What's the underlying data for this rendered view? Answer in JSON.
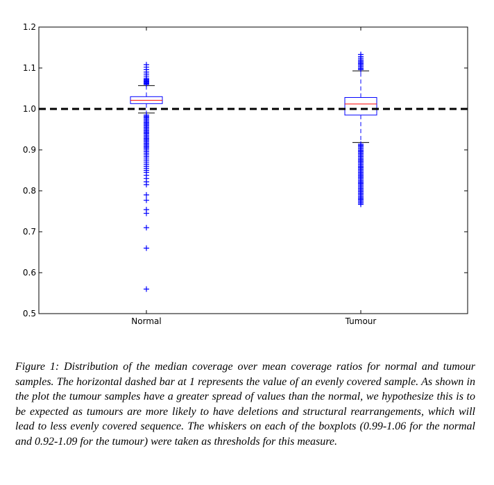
{
  "chart_data": {
    "type": "boxplot",
    "title": "",
    "xlabel": "",
    "ylabel": "",
    "ylim": [
      0.5,
      1.2
    ],
    "yticks": [
      "0.5",
      "0.6",
      "0.7",
      "0.8",
      "0.9",
      "1.0",
      "1.1",
      "1.2"
    ],
    "reference_line": {
      "y": 1.0,
      "style": "dashed"
    },
    "categories": [
      "Normal",
      "Tumour"
    ],
    "boxes": [
      {
        "label": "Normal",
        "whisker_low": 0.99,
        "q1": 1.013,
        "median": 1.021,
        "q3": 1.03,
        "whisker_high": 1.057,
        "fliers": [
          1.06,
          1.062,
          1.064,
          1.066,
          1.068,
          1.07,
          1.072,
          1.075,
          1.08,
          1.085,
          1.09,
          1.096,
          1.102,
          1.108,
          0.985,
          0.982,
          0.979,
          0.976,
          0.973,
          0.97,
          0.967,
          0.964,
          0.961,
          0.958,
          0.955,
          0.952,
          0.949,
          0.946,
          0.943,
          0.94,
          0.937,
          0.934,
          0.931,
          0.928,
          0.925,
          0.922,
          0.919,
          0.916,
          0.913,
          0.91,
          0.907,
          0.904,
          0.9,
          0.896,
          0.892,
          0.888,
          0.884,
          0.88,
          0.875,
          0.87,
          0.865,
          0.86,
          0.855,
          0.85,
          0.845,
          0.838,
          0.83,
          0.822,
          0.815,
          0.79,
          0.777,
          0.754,
          0.745,
          0.71,
          0.66,
          0.56
        ]
      },
      {
        "label": "Tumour",
        "whisker_low": 0.918,
        "q1": 0.985,
        "median": 1.012,
        "q3": 1.028,
        "whisker_high": 1.093,
        "fliers": [
          1.096,
          1.099,
          1.102,
          1.105,
          1.108,
          1.111,
          1.114,
          1.117,
          1.12,
          1.124,
          1.128,
          1.133,
          0.914,
          0.911,
          0.908,
          0.905,
          0.902,
          0.899,
          0.896,
          0.893,
          0.89,
          0.887,
          0.884,
          0.881,
          0.878,
          0.875,
          0.872,
          0.869,
          0.866,
          0.863,
          0.86,
          0.857,
          0.854,
          0.851,
          0.848,
          0.845,
          0.842,
          0.839,
          0.836,
          0.833,
          0.83,
          0.827,
          0.824,
          0.821,
          0.818,
          0.815,
          0.812,
          0.809,
          0.806,
          0.803,
          0.8,
          0.797,
          0.794,
          0.791,
          0.788,
          0.785,
          0.782,
          0.779,
          0.776,
          0.773,
          0.77,
          0.767
        ]
      }
    ],
    "colors": {
      "box": "#0000ff",
      "median": "#ff0000",
      "whisker": "#0000ff",
      "cap": "#000000",
      "flier": "#0000ff",
      "reference": "#000000"
    }
  },
  "caption": {
    "text": "Figure 1: Distribution of the median coverage over mean coverage ratios for normal and tumour samples. The horizontal dashed bar at 1 represents the value of an evenly covered sample. As shown in the plot the tumour samples have a greater spread of values than the normal, we hypothesize this is to be expected as tumours are more likely to have deletions and structural rearrangements, which will lead to less evenly covered sequence. The whiskers on each of the boxplots (0.99-1.06 for the normal and 0.92-1.09 for the tumour) were taken as thresholds for this measure."
  }
}
